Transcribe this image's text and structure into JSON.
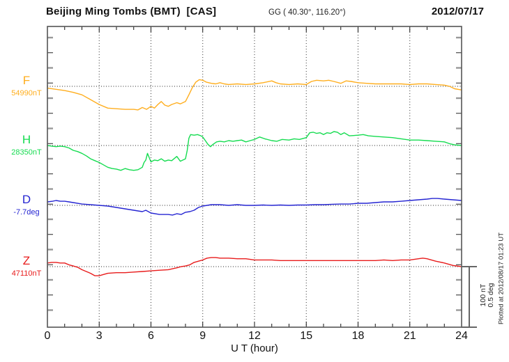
{
  "header": {
    "station_title": "Beijing Ming Tombs (BMT)  [CAS]",
    "coordinates": "GG ( 40.30°, 116.20°)",
    "date": "2012/07/17"
  },
  "footer_note": "Plotted at 2012/08/17 01:23 UT",
  "scale_bar": {
    "labels": [
      "100 nT",
      "0.5 deg"
    ],
    "meaning": "vertical bar equals 100 nT for F/H/Z and 0.5 deg for D"
  },
  "x_axis": {
    "title": "U T (hour)",
    "ticks": [
      0,
      3,
      6,
      9,
      12,
      15,
      18,
      21,
      24
    ],
    "range": [
      0,
      24
    ]
  },
  "chart_data": {
    "type": "line",
    "title": "Beijing Ming Tombs (BMT) magnetogram 2012/07/17",
    "x_unit": "UT hour",
    "x_range": [
      0,
      24
    ],
    "grid": "dotted vertical gridlines every 3 h; dotted horizontal line at each channel baseline",
    "points_format": "[UT hour, offset from channel baseline in channel unit]",
    "series": [
      {
        "name": "F",
        "label": "F",
        "baseline_label": "54990nT",
        "baseline_value": 54990,
        "unit": "nT",
        "color": "#FFAE1E",
        "points": [
          [
            0,
            -3
          ],
          [
            0.5,
            -5
          ],
          [
            1,
            -7
          ],
          [
            1.5,
            -10
          ],
          [
            2,
            -14
          ],
          [
            2.5,
            -22
          ],
          [
            3,
            -30
          ],
          [
            3.5,
            -36
          ],
          [
            4,
            -37
          ],
          [
            4.5,
            -38
          ],
          [
            5,
            -38
          ],
          [
            5.25,
            -39
          ],
          [
            5.5,
            -35
          ],
          [
            5.75,
            -38
          ],
          [
            6,
            -33
          ],
          [
            6.2,
            -36
          ],
          [
            6.4,
            -30
          ],
          [
            6.6,
            -25
          ],
          [
            6.8,
            -31
          ],
          [
            7,
            -33
          ],
          [
            7.2,
            -30
          ],
          [
            7.5,
            -27
          ],
          [
            7.7,
            -29
          ],
          [
            8,
            -25
          ],
          [
            8.2,
            -14
          ],
          [
            8.4,
            -2
          ],
          [
            8.6,
            7
          ],
          [
            8.8,
            11
          ],
          [
            9,
            10
          ],
          [
            9.2,
            7
          ],
          [
            9.5,
            5
          ],
          [
            9.75,
            4
          ],
          [
            10,
            6
          ],
          [
            10.25,
            4
          ],
          [
            10.5,
            3
          ],
          [
            11,
            4
          ],
          [
            11.5,
            3
          ],
          [
            12,
            4
          ],
          [
            12.5,
            6
          ],
          [
            13,
            9
          ],
          [
            13.25,
            6
          ],
          [
            13.5,
            4
          ],
          [
            14,
            3
          ],
          [
            14.5,
            4
          ],
          [
            15,
            3
          ],
          [
            15.3,
            8
          ],
          [
            15.6,
            10
          ],
          [
            16,
            9
          ],
          [
            16.3,
            10
          ],
          [
            16.6,
            8
          ],
          [
            17,
            5
          ],
          [
            17.3,
            9
          ],
          [
            17.6,
            8
          ],
          [
            18,
            6
          ],
          [
            18.5,
            5
          ],
          [
            19,
            4
          ],
          [
            19.5,
            4
          ],
          [
            20,
            4
          ],
          [
            20.5,
            4
          ],
          [
            21,
            3
          ],
          [
            21.5,
            4
          ],
          [
            22,
            4
          ],
          [
            22.5,
            3
          ],
          [
            23,
            2
          ],
          [
            23.3,
            0
          ],
          [
            23.6,
            -4
          ],
          [
            24,
            -6
          ]
        ]
      },
      {
        "name": "H",
        "label": "H",
        "baseline_label": "28350nT",
        "baseline_value": 28350,
        "unit": "nT",
        "color": "#15DC50",
        "points": [
          [
            0,
            0
          ],
          [
            0.25,
            -1
          ],
          [
            0.5,
            -2
          ],
          [
            0.75,
            -1
          ],
          [
            1,
            -2
          ],
          [
            1.25,
            -4
          ],
          [
            1.5,
            -8
          ],
          [
            1.75,
            -10
          ],
          [
            2,
            -13
          ],
          [
            2.25,
            -17
          ],
          [
            2.5,
            -22
          ],
          [
            2.75,
            -25
          ],
          [
            3,
            -28
          ],
          [
            3.25,
            -32
          ],
          [
            3.5,
            -36
          ],
          [
            3.75,
            -38
          ],
          [
            4,
            -39
          ],
          [
            4.25,
            -41
          ],
          [
            4.5,
            -38
          ],
          [
            4.75,
            -40
          ],
          [
            5,
            -41
          ],
          [
            5.25,
            -40
          ],
          [
            5.5,
            -36
          ],
          [
            5.6,
            -28
          ],
          [
            5.7,
            -24
          ],
          [
            5.8,
            -13
          ],
          [
            5.9,
            -20
          ],
          [
            6,
            -27
          ],
          [
            6.2,
            -24
          ],
          [
            6.4,
            -25
          ],
          [
            6.6,
            -22
          ],
          [
            6.8,
            -26
          ],
          [
            7,
            -24
          ],
          [
            7.2,
            -25
          ],
          [
            7.5,
            -18
          ],
          [
            7.7,
            -26
          ],
          [
            8,
            -22
          ],
          [
            8.1,
            -8
          ],
          [
            8.2,
            12
          ],
          [
            8.3,
            18
          ],
          [
            8.5,
            17
          ],
          [
            8.7,
            18
          ],
          [
            8.9,
            16
          ],
          [
            9,
            14
          ],
          [
            9.15,
            8
          ],
          [
            9.3,
            2
          ],
          [
            9.45,
            -2
          ],
          [
            9.6,
            2
          ],
          [
            9.8,
            6
          ],
          [
            10,
            7
          ],
          [
            10.25,
            6
          ],
          [
            10.5,
            8
          ],
          [
            10.75,
            7
          ],
          [
            11,
            8
          ],
          [
            11.25,
            9
          ],
          [
            11.5,
            6
          ],
          [
            11.75,
            8
          ],
          [
            12,
            10
          ],
          [
            12.3,
            14
          ],
          [
            12.6,
            11
          ],
          [
            13,
            8
          ],
          [
            13.3,
            7
          ],
          [
            13.6,
            10
          ],
          [
            14,
            9
          ],
          [
            14.3,
            11
          ],
          [
            14.6,
            10
          ],
          [
            15,
            13
          ],
          [
            15.2,
            21
          ],
          [
            15.4,
            22
          ],
          [
            15.6,
            20
          ],
          [
            15.8,
            21
          ],
          [
            16,
            18
          ],
          [
            16.2,
            21
          ],
          [
            16.4,
            20
          ],
          [
            16.6,
            23
          ],
          [
            16.8,
            22
          ],
          [
            17,
            18
          ],
          [
            17.2,
            21
          ],
          [
            17.5,
            16
          ],
          [
            18,
            17
          ],
          [
            18.3,
            18
          ],
          [
            18.6,
            16
          ],
          [
            19,
            15
          ],
          [
            19.5,
            14
          ],
          [
            20,
            13
          ],
          [
            20.5,
            11
          ],
          [
            21,
            9
          ],
          [
            21.5,
            9
          ],
          [
            22,
            8
          ],
          [
            22.5,
            7
          ],
          [
            23,
            6
          ],
          [
            23.3,
            3
          ],
          [
            23.6,
            1
          ],
          [
            24,
            0
          ]
        ]
      },
      {
        "name": "D",
        "label": "D",
        "baseline_label": "-7.7deg",
        "baseline_value": -7.7,
        "unit": "deg",
        "color": "#2525D2",
        "points": [
          [
            0,
            0.029
          ],
          [
            0.3,
            0.034
          ],
          [
            0.5,
            0.04
          ],
          [
            0.75,
            0.034
          ],
          [
            1,
            0.034
          ],
          [
            1.25,
            0.029
          ],
          [
            1.5,
            0.023
          ],
          [
            2,
            0.011
          ],
          [
            2.5,
            0.006
          ],
          [
            3,
            0
          ],
          [
            3.5,
            -0.006
          ],
          [
            4,
            -0.017
          ],
          [
            4.5,
            -0.029
          ],
          [
            5,
            -0.04
          ],
          [
            5.5,
            -0.052
          ],
          [
            5.7,
            -0.04
          ],
          [
            6,
            -0.063
          ],
          [
            6.5,
            -0.075
          ],
          [
            7,
            -0.075
          ],
          [
            7.25,
            -0.08
          ],
          [
            7.5,
            -0.069
          ],
          [
            7.75,
            -0.075
          ],
          [
            8,
            -0.057
          ],
          [
            8.25,
            -0.052
          ],
          [
            8.5,
            -0.04
          ],
          [
            8.75,
            -0.017
          ],
          [
            9,
            -0.006
          ],
          [
            9.25,
            0
          ],
          [
            9.5,
            0.006
          ],
          [
            10,
            0.006
          ],
          [
            10.5,
            0
          ],
          [
            11,
            0.006
          ],
          [
            11.5,
            0
          ],
          [
            12,
            0
          ],
          [
            12.5,
            0.003
          ],
          [
            13,
            0
          ],
          [
            13.5,
            0.003
          ],
          [
            14,
            0
          ],
          [
            14.5,
            0.003
          ],
          [
            15,
            0.003
          ],
          [
            15.5,
            0.006
          ],
          [
            16,
            0.006
          ],
          [
            16.5,
            0.009
          ],
          [
            17,
            0.011
          ],
          [
            17.5,
            0.011
          ],
          [
            18,
            0.017
          ],
          [
            18.5,
            0.017
          ],
          [
            19,
            0.023
          ],
          [
            19.5,
            0.029
          ],
          [
            20,
            0.029
          ],
          [
            20.5,
            0.034
          ],
          [
            21,
            0.04
          ],
          [
            21.5,
            0.046
          ],
          [
            22,
            0.052
          ],
          [
            22.3,
            0.057
          ],
          [
            22.6,
            0.057
          ],
          [
            23,
            0.052
          ],
          [
            23.5,
            0.046
          ],
          [
            24,
            0.04
          ]
        ]
      },
      {
        "name": "Z",
        "label": "Z",
        "baseline_label": "47110nT",
        "baseline_value": 47110,
        "unit": "nT",
        "color": "#E81B1B",
        "points": [
          [
            0,
            6
          ],
          [
            0.25,
            7
          ],
          [
            0.5,
            7
          ],
          [
            0.75,
            6
          ],
          [
            1,
            6
          ],
          [
            1.25,
            3
          ],
          [
            1.5,
            1
          ],
          [
            1.75,
            -1
          ],
          [
            2,
            -5
          ],
          [
            2.25,
            -8
          ],
          [
            2.5,
            -11
          ],
          [
            2.75,
            -15
          ],
          [
            3,
            -15
          ],
          [
            3.25,
            -13
          ],
          [
            3.5,
            -11
          ],
          [
            4,
            -10
          ],
          [
            4.5,
            -10
          ],
          [
            5,
            -9
          ],
          [
            5.5,
            -8
          ],
          [
            6,
            -7
          ],
          [
            6.5,
            -6
          ],
          [
            7,
            -5
          ],
          [
            7.5,
            -2
          ],
          [
            7.75,
            0
          ],
          [
            8,
            1
          ],
          [
            8.25,
            3
          ],
          [
            8.5,
            7
          ],
          [
            8.75,
            9
          ],
          [
            9,
            11
          ],
          [
            9.25,
            14
          ],
          [
            9.5,
            15
          ],
          [
            9.75,
            15
          ],
          [
            10,
            14
          ],
          [
            10.5,
            14
          ],
          [
            11,
            13
          ],
          [
            11.5,
            13
          ],
          [
            12,
            11
          ],
          [
            12.5,
            11
          ],
          [
            13,
            11
          ],
          [
            13.5,
            10
          ],
          [
            14,
            10
          ],
          [
            14.5,
            10
          ],
          [
            15,
            10
          ],
          [
            15.5,
            10
          ],
          [
            16,
            10
          ],
          [
            16.5,
            10
          ],
          [
            17,
            10
          ],
          [
            17.5,
            10
          ],
          [
            18,
            10
          ],
          [
            18.5,
            10
          ],
          [
            19,
            10
          ],
          [
            19.5,
            11
          ],
          [
            20,
            10
          ],
          [
            20.5,
            11
          ],
          [
            21,
            11
          ],
          [
            21.5,
            13
          ],
          [
            21.75,
            14
          ],
          [
            22,
            13
          ],
          [
            22.25,
            11
          ],
          [
            22.5,
            9
          ],
          [
            23,
            6
          ],
          [
            23.5,
            2
          ],
          [
            24,
            0
          ]
        ]
      }
    ]
  }
}
